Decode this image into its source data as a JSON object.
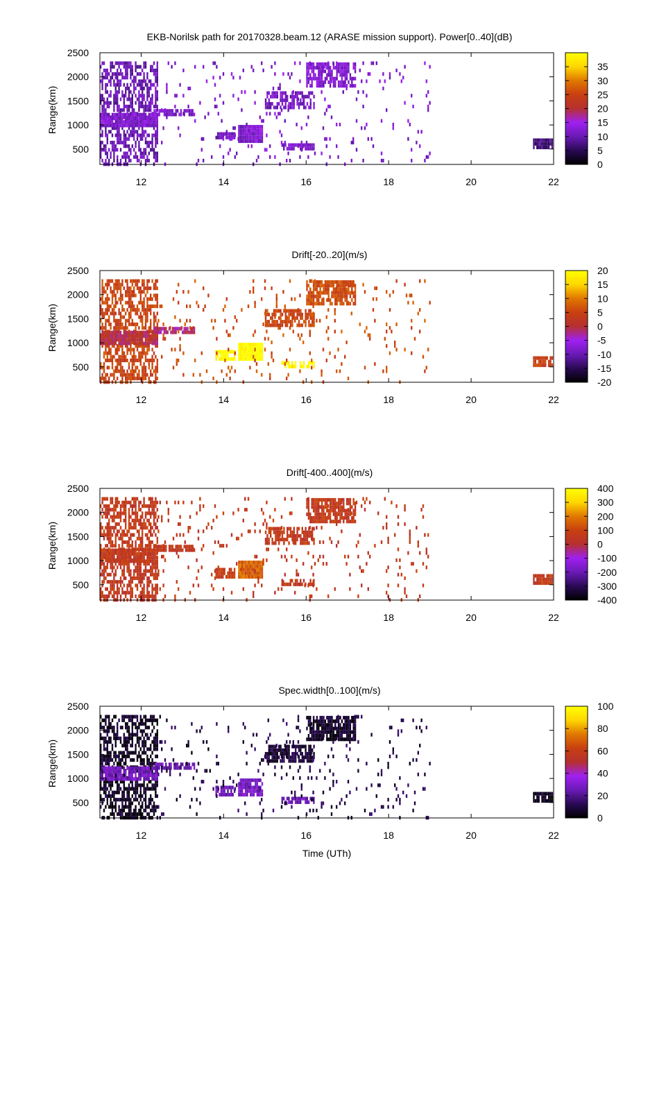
{
  "colors": {
    "gradient_stops": [
      "#000000",
      "#2a0a55",
      "#6a1ab5",
      "#a020f0",
      "#b53030",
      "#c84010",
      "#e07800",
      "#ffd700",
      "#ffff00"
    ],
    "frame": "#000000",
    "background": "#ffffff"
  },
  "chart_data": [
    {
      "type": "heatmap",
      "title": "EKB-Norilsk path for 20170328.beam.12 (ARASE mission support). Power[0..40](dB)",
      "xlabel": "",
      "ylabel": "Range(km)",
      "xlim": [
        11,
        22
      ],
      "ylim": [
        180,
        2500
      ],
      "x_ticks": [
        "12",
        "14",
        "16",
        "18",
        "20",
        "22"
      ],
      "y_ticks": [
        "500",
        "1000",
        "1500",
        "2000",
        "2500"
      ],
      "colorbar": {
        "range": [
          0,
          40
        ],
        "ticks": [
          "0",
          "5",
          "10",
          "15",
          "20",
          "25",
          "30",
          "35"
        ]
      },
      "regions": [
        {
          "t0": 11.0,
          "t1": 12.4,
          "r0": 180,
          "r1": 2320,
          "value": 10,
          "density": 0.55
        },
        {
          "t0": 11.0,
          "t1": 12.4,
          "r0": 950,
          "r1": 1250,
          "value": 12,
          "density": 0.95
        },
        {
          "t0": 12.3,
          "t1": 13.3,
          "r0": 1180,
          "r1": 1330,
          "value": 12,
          "density": 0.8
        },
        {
          "t0": 13.8,
          "t1": 14.3,
          "r0": 700,
          "r1": 850,
          "value": 11,
          "density": 0.9
        },
        {
          "t0": 14.35,
          "t1": 14.95,
          "r0": 600,
          "r1": 1000,
          "value": 12,
          "density": 1.0
        },
        {
          "t0": 15.0,
          "t1": 16.2,
          "r0": 1300,
          "r1": 1700,
          "value": 11,
          "density": 0.7
        },
        {
          "t0": 16.0,
          "t1": 17.2,
          "r0": 1750,
          "r1": 2300,
          "value": 12,
          "density": 0.8
        },
        {
          "t0": 15.4,
          "t1": 16.2,
          "r0": 450,
          "r1": 620,
          "value": 11,
          "density": 0.7
        },
        {
          "t0": 21.5,
          "t1": 22.0,
          "r0": 520,
          "r1": 720,
          "value": 7,
          "density": 0.9
        },
        {
          "t0": 12.4,
          "t1": 19.0,
          "r0": 180,
          "r1": 2320,
          "value": 12,
          "density": 0.05
        }
      ]
    },
    {
      "type": "heatmap",
      "title": "Drift[-20..20](m/s)",
      "xlabel": "",
      "ylabel": "Range(km)",
      "xlim": [
        11,
        22
      ],
      "ylim": [
        180,
        2500
      ],
      "x_ticks": [
        "12",
        "14",
        "16",
        "18",
        "20",
        "22"
      ],
      "y_ticks": [
        "500",
        "1000",
        "1500",
        "2000",
        "2500"
      ],
      "colorbar": {
        "range": [
          -20,
          20
        ],
        "ticks": [
          "-20",
          "-15",
          "-10",
          "-5",
          "0",
          "5",
          "10",
          "15",
          "20"
        ]
      },
      "regions": [
        {
          "t0": 11.0,
          "t1": 12.4,
          "r0": 180,
          "r1": 2320,
          "value": 5,
          "density": 0.6
        },
        {
          "t0": 11.0,
          "t1": 12.4,
          "r0": 950,
          "r1": 1250,
          "value": 0,
          "density": 0.9
        },
        {
          "t0": 12.3,
          "t1": 13.3,
          "r0": 1180,
          "r1": 1330,
          "value": -2,
          "density": 0.8
        },
        {
          "t0": 13.8,
          "t1": 14.3,
          "r0": 650,
          "r1": 850,
          "value": 20,
          "density": 0.9
        },
        {
          "t0": 14.35,
          "t1": 14.95,
          "r0": 600,
          "r1": 1000,
          "value": 20,
          "density": 1.0
        },
        {
          "t0": 15.0,
          "t1": 16.2,
          "r0": 1300,
          "r1": 1700,
          "value": 5,
          "density": 0.7
        },
        {
          "t0": 16.0,
          "t1": 17.2,
          "r0": 1750,
          "r1": 2300,
          "value": 6,
          "density": 0.8
        },
        {
          "t0": 15.4,
          "t1": 16.2,
          "r0": 450,
          "r1": 620,
          "value": 19,
          "density": 0.7
        },
        {
          "t0": 21.5,
          "t1": 22.0,
          "r0": 520,
          "r1": 720,
          "value": 4,
          "density": 0.9
        },
        {
          "t0": 12.4,
          "t1": 19.0,
          "r0": 180,
          "r1": 2320,
          "value": 6,
          "density": 0.05
        }
      ]
    },
    {
      "type": "heatmap",
      "title": "Drift[-400..400](m/s)",
      "xlabel": "",
      "ylabel": "Range(km)",
      "xlim": [
        11,
        22
      ],
      "ylim": [
        180,
        2500
      ],
      "x_ticks": [
        "12",
        "14",
        "16",
        "18",
        "20",
        "22"
      ],
      "y_ticks": [
        "500",
        "1000",
        "1500",
        "2000",
        "2500"
      ],
      "colorbar": {
        "range": [
          -400,
          400
        ],
        "ticks": [
          "-400",
          "-300",
          "-200",
          "-100",
          "0",
          "100",
          "200",
          "300",
          "400"
        ]
      },
      "regions": [
        {
          "t0": 11.0,
          "t1": 12.4,
          "r0": 180,
          "r1": 2320,
          "value": 60,
          "density": 0.6
        },
        {
          "t0": 11.0,
          "t1": 12.4,
          "r0": 950,
          "r1": 1250,
          "value": 60,
          "density": 0.9
        },
        {
          "t0": 12.3,
          "t1": 13.3,
          "r0": 1180,
          "r1": 1330,
          "value": 60,
          "density": 0.8
        },
        {
          "t0": 13.8,
          "t1": 14.3,
          "r0": 650,
          "r1": 850,
          "value": 70,
          "density": 0.9
        },
        {
          "t0": 14.35,
          "t1": 14.95,
          "r0": 600,
          "r1": 1000,
          "value": 160,
          "density": 1.0
        },
        {
          "t0": 15.0,
          "t1": 16.2,
          "r0": 1300,
          "r1": 1700,
          "value": 60,
          "density": 0.7
        },
        {
          "t0": 16.0,
          "t1": 17.2,
          "r0": 1750,
          "r1": 2300,
          "value": 60,
          "density": 0.8
        },
        {
          "t0": 15.4,
          "t1": 16.2,
          "r0": 450,
          "r1": 620,
          "value": 60,
          "density": 0.7
        },
        {
          "t0": 21.5,
          "t1": 22.0,
          "r0": 520,
          "r1": 720,
          "value": 60,
          "density": 0.9
        },
        {
          "t0": 12.4,
          "t1": 19.0,
          "r0": 180,
          "r1": 2320,
          "value": 60,
          "density": 0.05
        }
      ]
    },
    {
      "type": "heatmap",
      "title": "Spec.width[0..100](m/s)",
      "xlabel": "Time (UTh)",
      "ylabel": "Range(km)",
      "xlim": [
        11,
        22
      ],
      "ylim": [
        180,
        2500
      ],
      "x_ticks": [
        "12",
        "14",
        "16",
        "18",
        "20",
        "22"
      ],
      "y_ticks": [
        "500",
        "1000",
        "1500",
        "2000",
        "2500"
      ],
      "colorbar": {
        "range": [
          0,
          100
        ],
        "ticks": [
          "0",
          "20",
          "40",
          "60",
          "80",
          "100"
        ]
      },
      "regions": [
        {
          "t0": 11.0,
          "t1": 12.4,
          "r0": 180,
          "r1": 2320,
          "value": 5,
          "density": 0.6
        },
        {
          "t0": 11.0,
          "t1": 12.4,
          "r0": 950,
          "r1": 1250,
          "value": 28,
          "density": 0.85
        },
        {
          "t0": 12.3,
          "t1": 13.3,
          "r0": 1180,
          "r1": 1330,
          "value": 25,
          "density": 0.7
        },
        {
          "t0": 13.8,
          "t1": 14.3,
          "r0": 650,
          "r1": 850,
          "value": 25,
          "density": 0.9
        },
        {
          "t0": 14.35,
          "t1": 14.95,
          "r0": 600,
          "r1": 1000,
          "value": 28,
          "density": 0.9
        },
        {
          "t0": 15.0,
          "t1": 16.2,
          "r0": 1300,
          "r1": 1700,
          "value": 8,
          "density": 0.7
        },
        {
          "t0": 16.0,
          "t1": 17.2,
          "r0": 1750,
          "r1": 2300,
          "value": 6,
          "density": 0.8
        },
        {
          "t0": 15.4,
          "t1": 16.2,
          "r0": 450,
          "r1": 620,
          "value": 25,
          "density": 0.7
        },
        {
          "t0": 21.5,
          "t1": 22.0,
          "r0": 520,
          "r1": 720,
          "value": 4,
          "density": 0.9
        },
        {
          "t0": 12.4,
          "t1": 19.0,
          "r0": 180,
          "r1": 2320,
          "value": 10,
          "density": 0.05
        }
      ]
    }
  ]
}
